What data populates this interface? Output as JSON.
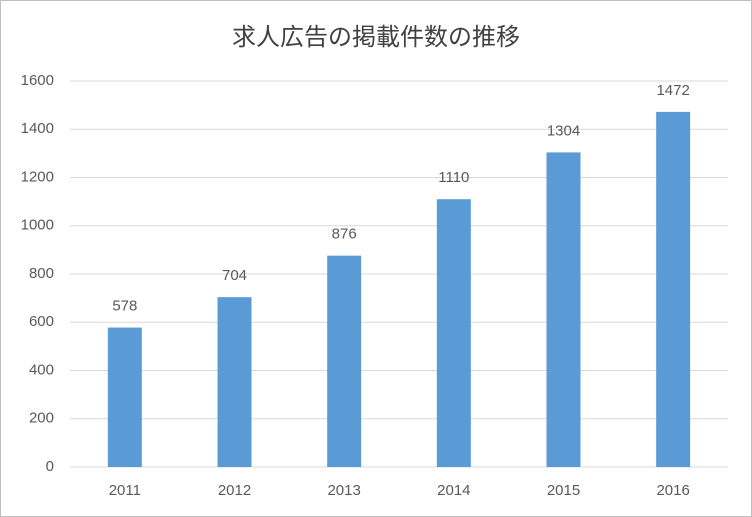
{
  "chart_data": {
    "type": "bar",
    "title": "求人広告の掲載件数の推移",
    "categories": [
      "2011",
      "2012",
      "2013",
      "2014",
      "2015",
      "2016"
    ],
    "values": [
      578,
      704,
      876,
      1110,
      1304,
      1472
    ],
    "color": "#5b9bd5",
    "ylim": [
      0,
      1600
    ],
    "yticks": [
      0,
      200,
      400,
      600,
      800,
      1000,
      1200,
      1400,
      1600
    ],
    "grid": true
  }
}
